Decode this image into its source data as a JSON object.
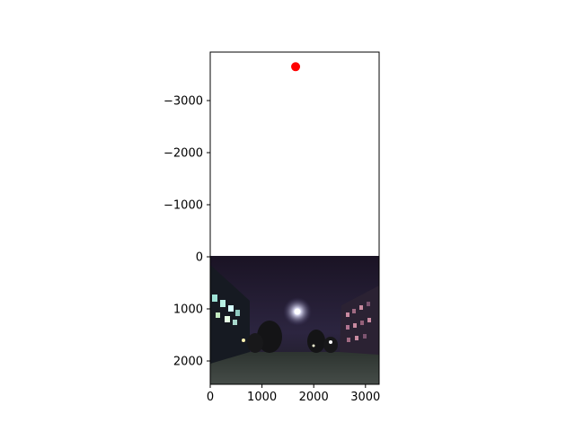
{
  "chart_data": {
    "type": "scatter",
    "title": "",
    "xlabel": "",
    "ylabel": "",
    "xlim": [
      0,
      3264
    ],
    "ylim": [
      2448,
      -3931
    ],
    "y_axis_inverted": true,
    "grid": false,
    "legend": "none",
    "x_ticks": [
      0,
      1000,
      2000,
      3000
    ],
    "x_tick_labels": [
      "0",
      "1000",
      "2000",
      "3000"
    ],
    "y_ticks": [
      -3000,
      -2000,
      -1000,
      0,
      1000,
      2000
    ],
    "y_tick_labels": [
      "−3000",
      "−2000",
      "−1000",
      "0",
      "1000",
      "2000"
    ],
    "points": [
      {
        "x": 1650,
        "y": -3650,
        "color": "#ff0000"
      }
    ],
    "background_image": {
      "description": "night photo of a campus courtyard with a bright moon",
      "extent": {
        "x": [
          0,
          3264
        ],
        "y": [
          0,
          2448
        ]
      }
    },
    "colors": {
      "point": "#ff0000",
      "axes": "#000000",
      "background": "#ffffff"
    }
  }
}
